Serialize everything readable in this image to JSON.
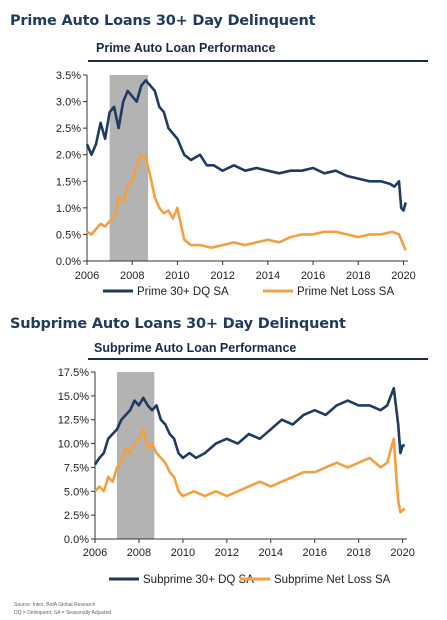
{
  "section1_title": "Prime Auto Loans 30+ Day Delinquent",
  "section2_title": "Subprime Auto Loans 30+ Day Delinquent",
  "footnote_source": "Source: Intex, BofA Global Research",
  "footnote_abbrev": "DQ = Delinquent; SA = Seasonally Adjusted",
  "chart_data": [
    {
      "type": "line",
      "title": "Prime Auto Loan Performance",
      "xlabel": "",
      "ylabel": "",
      "xlim": [
        2006,
        2020.2
      ],
      "ylim": [
        0,
        3.5
      ],
      "x_ticks": [
        2006,
        2008,
        2010,
        2012,
        2014,
        2016,
        2018,
        2020
      ],
      "y_ticks": [
        0,
        0.5,
        1.0,
        1.5,
        2.0,
        2.5,
        3.0,
        3.5
      ],
      "y_tick_labels": [
        "0.0%",
        "0.5%",
        "1.0%",
        "1.5%",
        "2.0%",
        "2.5%",
        "3.0%",
        "3.5%"
      ],
      "shaded_region": [
        2007.0,
        2008.7
      ],
      "shade_color": "#b3b3b3",
      "legend_position": "bottom",
      "series": [
        {
          "name": "Prime 30+ DQ SA",
          "color": "#1f3a63",
          "x": [
            2006.0,
            2006.2,
            2006.4,
            2006.6,
            2006.8,
            2007.0,
            2007.2,
            2007.4,
            2007.6,
            2007.8,
            2008.0,
            2008.2,
            2008.4,
            2008.6,
            2008.8,
            2009.0,
            2009.2,
            2009.4,
            2009.6,
            2009.8,
            2010.0,
            2010.3,
            2010.6,
            2011.0,
            2011.3,
            2011.6,
            2012.0,
            2012.5,
            2013.0,
            2013.5,
            2014.0,
            2014.5,
            2015.0,
            2015.5,
            2016.0,
            2016.5,
            2017.0,
            2017.5,
            2018.0,
            2018.5,
            2019.0,
            2019.4,
            2019.6,
            2019.8,
            2019.9,
            2020.0,
            2020.1
          ],
          "values": [
            2.2,
            2.0,
            2.2,
            2.6,
            2.3,
            2.8,
            2.9,
            2.5,
            3.0,
            3.2,
            3.1,
            3.0,
            3.3,
            3.4,
            3.3,
            3.2,
            2.9,
            2.8,
            2.5,
            2.4,
            2.3,
            2.0,
            1.9,
            2.0,
            1.8,
            1.8,
            1.7,
            1.8,
            1.7,
            1.75,
            1.7,
            1.65,
            1.7,
            1.7,
            1.75,
            1.65,
            1.7,
            1.6,
            1.55,
            1.5,
            1.5,
            1.45,
            1.4,
            1.5,
            1.0,
            0.95,
            1.1
          ]
        },
        {
          "name": "Prime Net Loss SA",
          "color": "#f5a040",
          "x": [
            2006.0,
            2006.2,
            2006.4,
            2006.6,
            2006.8,
            2007.0,
            2007.2,
            2007.4,
            2007.6,
            2007.8,
            2008.0,
            2008.2,
            2008.4,
            2008.6,
            2008.8,
            2009.0,
            2009.2,
            2009.4,
            2009.6,
            2009.8,
            2010.0,
            2010.3,
            2010.6,
            2011.0,
            2011.5,
            2012.0,
            2012.5,
            2013.0,
            2013.5,
            2014.0,
            2014.5,
            2015.0,
            2015.5,
            2016.0,
            2016.5,
            2017.0,
            2017.5,
            2018.0,
            2018.5,
            2019.0,
            2019.5,
            2019.8,
            2020.0,
            2020.1
          ],
          "values": [
            0.55,
            0.5,
            0.6,
            0.7,
            0.65,
            0.75,
            0.8,
            1.2,
            1.1,
            1.4,
            1.5,
            1.8,
            2.0,
            1.95,
            1.6,
            1.2,
            1.0,
            0.9,
            0.95,
            0.8,
            1.0,
            0.4,
            0.3,
            0.3,
            0.25,
            0.3,
            0.35,
            0.3,
            0.35,
            0.4,
            0.35,
            0.45,
            0.5,
            0.5,
            0.55,
            0.55,
            0.5,
            0.45,
            0.5,
            0.5,
            0.55,
            0.5,
            0.3,
            0.2
          ]
        }
      ]
    },
    {
      "type": "line",
      "title": "Subprime Auto Loan Performance",
      "xlabel": "",
      "ylabel": "",
      "xlim": [
        2006,
        2020.2
      ],
      "ylim": [
        0,
        17.5
      ],
      "x_ticks": [
        2006,
        2008,
        2010,
        2012,
        2014,
        2016,
        2018,
        2020
      ],
      "y_ticks": [
        0,
        2.5,
        5.0,
        7.5,
        10.0,
        12.5,
        15.0,
        17.5
      ],
      "y_tick_labels": [
        "0.0%",
        "2.5%",
        "5.0%",
        "7.5%",
        "10.0%",
        "12.5%",
        "15.0%",
        "17.5%"
      ],
      "shaded_region": [
        2007.0,
        2008.7
      ],
      "shade_color": "#b3b3b3",
      "legend_position": "bottom",
      "series": [
        {
          "name": "Subprime 30+ DQ SA",
          "color": "#1f3a63",
          "x": [
            2006.0,
            2006.2,
            2006.4,
            2006.6,
            2006.8,
            2007.0,
            2007.2,
            2007.4,
            2007.6,
            2007.8,
            2008.0,
            2008.2,
            2008.4,
            2008.6,
            2008.8,
            2009.0,
            2009.2,
            2009.4,
            2009.6,
            2009.8,
            2010.0,
            2010.3,
            2010.6,
            2011.0,
            2011.5,
            2012.0,
            2012.5,
            2013.0,
            2013.5,
            2014.0,
            2014.5,
            2015.0,
            2015.5,
            2016.0,
            2016.5,
            2017.0,
            2017.5,
            2018.0,
            2018.5,
            2019.0,
            2019.3,
            2019.6,
            2019.8,
            2019.9,
            2020.0,
            2020.1
          ],
          "values": [
            7.8,
            8.5,
            9.0,
            10.5,
            11.0,
            11.5,
            12.5,
            13.0,
            13.5,
            14.5,
            14.0,
            14.8,
            14.0,
            13.5,
            14.0,
            12.5,
            12.0,
            11.0,
            10.5,
            9.0,
            8.5,
            9.0,
            8.5,
            9.0,
            10.0,
            10.5,
            10.0,
            11.0,
            10.5,
            11.5,
            12.5,
            12.0,
            13.0,
            13.5,
            13.0,
            14.0,
            14.5,
            14.0,
            14.0,
            13.5,
            14.0,
            15.8,
            12.0,
            9.0,
            9.8,
            9.8
          ]
        },
        {
          "name": "Subprime Net Loss SA",
          "color": "#f5a040",
          "x": [
            2006.0,
            2006.2,
            2006.4,
            2006.6,
            2006.8,
            2007.0,
            2007.2,
            2007.4,
            2007.6,
            2007.8,
            2008.0,
            2008.2,
            2008.4,
            2008.6,
            2008.8,
            2009.0,
            2009.2,
            2009.4,
            2009.6,
            2009.8,
            2010.0,
            2010.5,
            2011.0,
            2011.5,
            2012.0,
            2012.5,
            2013.0,
            2013.5,
            2014.0,
            2014.5,
            2015.0,
            2015.5,
            2016.0,
            2016.5,
            2017.0,
            2017.5,
            2018.0,
            2018.5,
            2019.0,
            2019.3,
            2019.6,
            2019.7,
            2019.8,
            2019.9,
            2020.0,
            2020.1
          ],
          "values": [
            5.0,
            5.5,
            5.0,
            6.5,
            6.0,
            7.5,
            8.0,
            9.5,
            9.0,
            10.0,
            10.5,
            11.5,
            9.5,
            10.0,
            9.0,
            8.5,
            8.0,
            7.0,
            6.5,
            5.0,
            4.5,
            5.0,
            4.5,
            5.0,
            4.5,
            5.0,
            5.5,
            6.0,
            5.5,
            6.0,
            6.5,
            7.0,
            7.0,
            7.5,
            8.0,
            7.5,
            8.0,
            8.5,
            7.5,
            8.0,
            10.5,
            7.0,
            4.0,
            2.8,
            3.0,
            3.2
          ]
        }
      ]
    }
  ]
}
